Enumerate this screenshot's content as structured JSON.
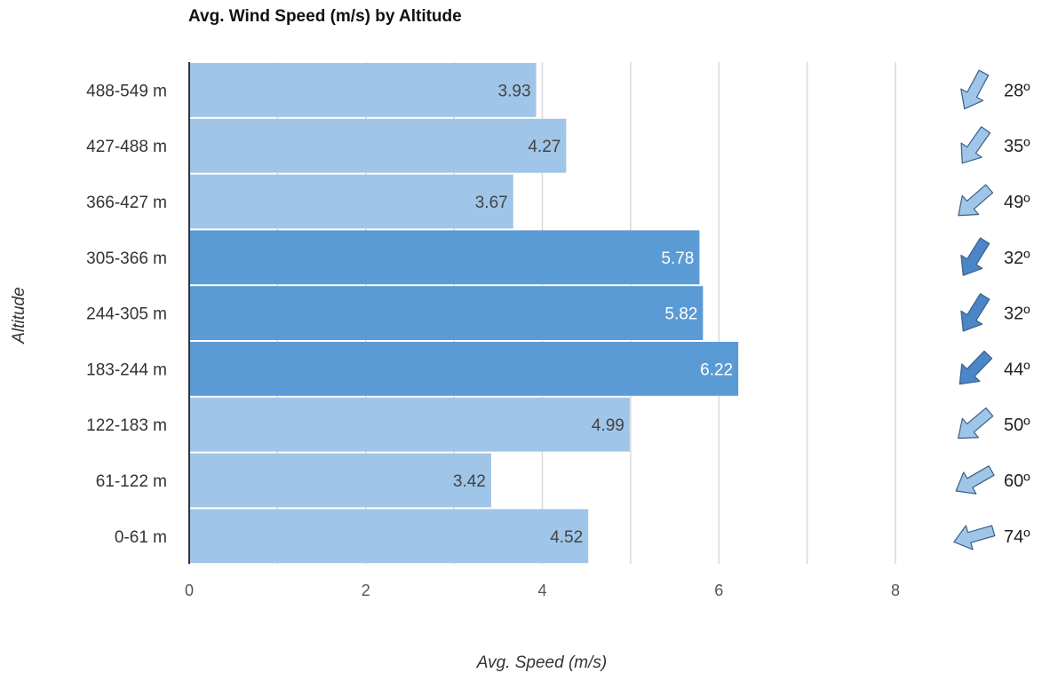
{
  "chart_data": {
    "type": "bar",
    "orientation": "horizontal",
    "title": "Avg. Wind Speed (m/s) by Altitude",
    "xlabel": "Avg. Speed (m/s)",
    "ylabel": "Altitude",
    "xlim": [
      0,
      8
    ],
    "xticks": [
      "0",
      "2",
      "4",
      "6",
      "8"
    ],
    "grid": true,
    "categories": [
      "488-549 m",
      "427-488 m",
      "366-427 m",
      "305-366 m",
      "244-305 m",
      "183-244 m",
      "122-183 m",
      "61-122 m",
      "0-61 m"
    ],
    "values": [
      3.93,
      4.27,
      3.67,
      5.78,
      5.82,
      6.22,
      4.99,
      3.42,
      4.52
    ],
    "value_labels": [
      "3.93",
      "4.27",
      "3.67",
      "5.78",
      "5.82",
      "6.22",
      "4.99",
      "3.42",
      "4.52"
    ],
    "highlighted": [
      false,
      false,
      false,
      true,
      true,
      true,
      false,
      false,
      false
    ],
    "wind_direction_labels": [
      "28º",
      "35º",
      "49º",
      "32º",
      "32º",
      "44º",
      "50º",
      "60º",
      "74º"
    ],
    "wind_direction_degrees": [
      28,
      35,
      49,
      32,
      32,
      44,
      50,
      60,
      74
    ],
    "colors": {
      "bar": "#9fc5e8",
      "bar_highlight": "#5b9bd5",
      "arrow": "#9fc5e8",
      "arrow_highlight": "#4a86c8",
      "grid": "#d9d9d9",
      "axis": "#333333"
    }
  }
}
